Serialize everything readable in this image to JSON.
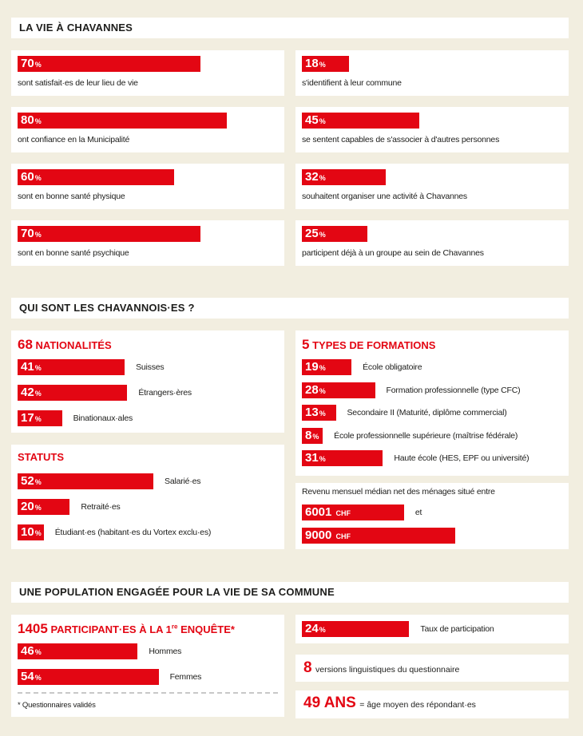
{
  "colors": {
    "accent": "#e30613",
    "background": "#f2eee0"
  },
  "s1": {
    "title": "LA VIE À CHAVANNES",
    "left": [
      {
        "value": 70,
        "unit": "%",
        "label": "sont satisfait·es de leur lieu de vie"
      },
      {
        "value": 80,
        "unit": "%",
        "label": "ont confiance en la Municipalité"
      },
      {
        "value": 60,
        "unit": "%",
        "label": "sont en bonne santé physique"
      },
      {
        "value": 70,
        "unit": "%",
        "label": "sont en bonne santé psychique"
      }
    ],
    "right": [
      {
        "value": 18,
        "unit": "%",
        "label": "s'identifient à leur commune"
      },
      {
        "value": 45,
        "unit": "%",
        "label": "se sentent capables de s'associer à d'autres personnes"
      },
      {
        "value": 32,
        "unit": "%",
        "label": "souhaitent organiser une activité à Chavannes"
      },
      {
        "value": 25,
        "unit": "%",
        "label": "participent déjà à un groupe au sein de Chavannes"
      }
    ]
  },
  "s2": {
    "title": "QUI SONT LES CHAVANNOIS·ES ?",
    "nat": {
      "number": "68",
      "title": "NATIONALITÉS",
      "items": [
        {
          "value": 41,
          "unit": "%",
          "label": "Suisses"
        },
        {
          "value": 42,
          "unit": "%",
          "label": "Étrangers·ères"
        },
        {
          "value": 17,
          "unit": "%",
          "label": "Binationaux·ales"
        }
      ]
    },
    "stat": {
      "title": "STATUTS",
      "items": [
        {
          "value": 52,
          "unit": "%",
          "label": "Salarié·es"
        },
        {
          "value": 20,
          "unit": "%",
          "label": "Retraité·es"
        },
        {
          "value": 10,
          "unit": "%",
          "label": "Étudiant·es (habitant·es du Vortex exclu·es)"
        }
      ]
    },
    "form": {
      "number": "5",
      "title": "TYPES DE FORMATIONS",
      "items": [
        {
          "value": 19,
          "unit": "%",
          "label": "École obligatoire"
        },
        {
          "value": 28,
          "unit": "%",
          "label": "Formation professionnelle (type CFC)"
        },
        {
          "value": 13,
          "unit": "%",
          "label": "Secondaire II (Maturité, diplôme commercial)"
        },
        {
          "value": 8,
          "unit": "%",
          "label": "École professionnelle supérieure (maîtrise fédérale)"
        },
        {
          "value": 31,
          "unit": "%",
          "label": "Haute école (HES, EPF ou université)"
        }
      ]
    },
    "rev": {
      "caption": "Revenu mensuel médian net des ménages situé entre",
      "low": {
        "value": 6001,
        "unit": "CHF"
      },
      "and": "et",
      "high": {
        "value": 9000,
        "unit": "CHF"
      }
    }
  },
  "s3": {
    "title": "UNE POPULATION ENGAGÉE POUR LA VIE DE SA COMMUNE",
    "part": {
      "number": "1405",
      "title_a": "PARTICIPANT·ES À LA 1",
      "sup": "re",
      "title_b": " ENQUÊTE*",
      "items": [
        {
          "value": 46,
          "unit": "%",
          "label": "Hommes"
        },
        {
          "value": 54,
          "unit": "%",
          "label": "Femmes"
        }
      ],
      "footnote": "* Questionnaires validés"
    },
    "rate": {
      "value": 24,
      "unit": "%",
      "label": "Taux de participation"
    },
    "versions": {
      "number": "8",
      "label": "versions linguistiques du questionnaire"
    },
    "age": {
      "number": "49 ANS",
      "label": "= âge moyen des répondant·es"
    }
  }
}
